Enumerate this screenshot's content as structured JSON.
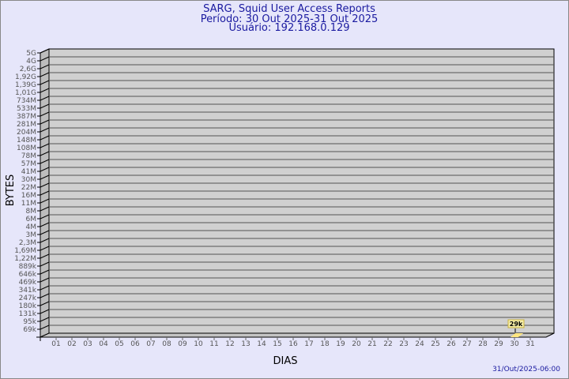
{
  "header": {
    "title": "SARG, Squid User Access Reports",
    "period": "Período: 30 Out 2025-31 Out 2025",
    "user": "Usuário: 192.168.0.129"
  },
  "footer": {
    "timestamp": "31/Out/2025-06:00"
  },
  "colors": {
    "background": "#e6e6fa",
    "plot": "#d0d0d0",
    "bar": "#ffe680",
    "title": "#1a1aa0"
  },
  "chart_data": {
    "type": "bar",
    "xlabel": "DIAS",
    "ylabel": "BYTES",
    "y_scale": "log",
    "grid": true,
    "y_ticks": [
      "5G",
      "4G",
      "2,6G",
      "1,92G",
      "1,39G",
      "1,01G",
      "734M",
      "533M",
      "387M",
      "281M",
      "204M",
      "148M",
      "108M",
      "78M",
      "57M",
      "41M",
      "30M",
      "22M",
      "16M",
      "11M",
      "8M",
      "6M",
      "4M",
      "3M",
      "2,3M",
      "1,69M",
      "1,22M",
      "889k",
      "646k",
      "469k",
      "341k",
      "247k",
      "180k",
      "131k",
      "95k",
      "69k"
    ],
    "categories": [
      "01",
      "02",
      "03",
      "04",
      "05",
      "06",
      "07",
      "08",
      "09",
      "10",
      "11",
      "12",
      "13",
      "14",
      "15",
      "16",
      "17",
      "18",
      "19",
      "20",
      "21",
      "22",
      "23",
      "24",
      "25",
      "26",
      "27",
      "28",
      "29",
      "30",
      "31"
    ],
    "bars": [
      {
        "category": "30",
        "value": 29000,
        "label": "29k"
      }
    ]
  }
}
